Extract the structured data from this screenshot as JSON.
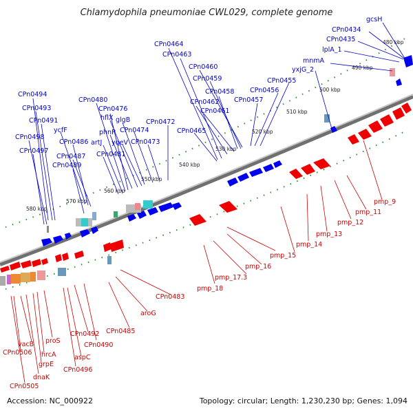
{
  "title": "Chlamydophila pneumoniae CWL029, complete genome",
  "accession": "Accession: NC_000922",
  "stats": "Topology: circular; Length: 1,230,230 bp; Genes: 1,094",
  "colors": {
    "forward_gene": "#0000ee",
    "reverse_gene": "#ee0000",
    "forward_label": "#0000cc",
    "reverse_label": "#cc0000",
    "backbone": "#888888",
    "ticks": "#2a8a2a"
  },
  "ticks": [
    {
      "kbp": 480,
      "label": "480 kbp"
    },
    {
      "kbp": 490,
      "label": "490 kbp"
    },
    {
      "kbp": 500,
      "label": "500 kbp"
    },
    {
      "kbp": 510,
      "label": "510 kbp"
    },
    {
      "kbp": 520,
      "label": "520 kbp"
    },
    {
      "kbp": 530,
      "label": "530 kbp"
    },
    {
      "kbp": 540,
      "label": "540 kbp"
    },
    {
      "kbp": 550,
      "label": "550 kbp"
    },
    {
      "kbp": 560,
      "label": "560 kbp"
    },
    {
      "kbp": 570,
      "label": "570 kbp"
    },
    {
      "kbp": 580,
      "label": "580 kbp"
    }
  ],
  "forward_labels": [
    "gcsH",
    "CPn0434",
    "CPn0435",
    "lplA_1",
    "mnmA",
    "yxjG_2",
    "CPn0455",
    "CPn0456",
    "CPn0457",
    "CPn0458",
    "CPn0459",
    "CPn0460",
    "CPn0461",
    "CPn0462",
    "CPn0463",
    "CPn0464",
    "CPn0465",
    "CPn0472",
    "CPn0473",
    "CPn0474",
    "yqeV",
    "glgB",
    "hflX",
    "phnP",
    "CPn0476",
    "CPn0480",
    "artJ",
    "CPn0481",
    "ycfF",
    "CPn0486",
    "CPn0487",
    "CPn0489",
    "CPn0491",
    "CPn0493",
    "CPn0494",
    "CPn0498",
    "CPn0497"
  ],
  "reverse_labels": [
    "pmp_9",
    "pmp_11",
    "pmp_12",
    "pmp_13",
    "pmp_14",
    "pmp_15",
    "pmp_16",
    "pmp_17.3",
    "pmp_18",
    "CPn0483",
    "aroG",
    "CPn0485",
    "CPn0490",
    "CPn0492",
    "aspC",
    "CPn0496",
    "proS",
    "hrcA",
    "grpE",
    "dnaK",
    "vacB",
    "CPn0506",
    "CPn0505"
  ]
}
